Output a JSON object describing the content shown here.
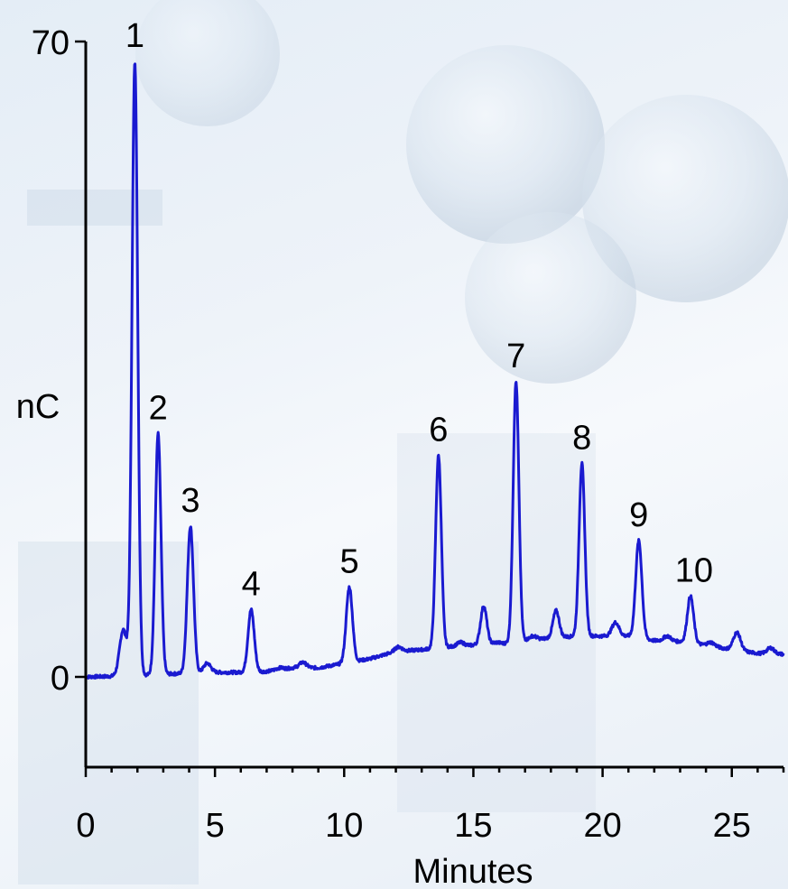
{
  "chart_data": {
    "type": "line",
    "title": "",
    "xlabel": "Minutes",
    "ylabel": "nC",
    "xlim": [
      0,
      27
    ],
    "ylim": [
      0,
      70
    ],
    "x_ticks": [
      0,
      5,
      10,
      15,
      20,
      25
    ],
    "y_ticks": [
      0,
      70
    ],
    "grid": false,
    "colors": {
      "trace": "#1a1ad0",
      "axis": "#000000"
    },
    "baseline": [
      [
        0,
        0
      ],
      [
        1.5,
        0.1
      ],
      [
        3,
        0.3
      ],
      [
        5,
        0.5
      ],
      [
        6,
        0.5
      ],
      [
        7,
        0.6
      ],
      [
        8,
        1.0
      ],
      [
        9,
        1.0
      ],
      [
        10,
        1.5
      ],
      [
        11,
        2.0
      ],
      [
        12,
        2.8
      ],
      [
        13,
        3.0
      ],
      [
        14,
        3.3
      ],
      [
        15,
        3.5
      ],
      [
        16,
        3.6
      ],
      [
        17,
        4.0
      ],
      [
        18,
        4.3
      ],
      [
        19,
        4.5
      ],
      [
        20,
        4.5
      ],
      [
        21,
        4.5
      ],
      [
        22,
        4.0
      ],
      [
        23,
        3.9
      ],
      [
        24,
        3.5
      ],
      [
        25,
        3.0
      ],
      [
        26,
        2.6
      ],
      [
        27,
        2.5
      ]
    ],
    "peaks": [
      {
        "label": "",
        "x": 1.45,
        "y": 5.2
      },
      {
        "label": "1",
        "x": 1.9,
        "y": 67.8
      },
      {
        "label": "2",
        "x": 2.8,
        "y": 26.8
      },
      {
        "label": "3",
        "x": 4.05,
        "y": 16.6
      },
      {
        "label": "",
        "x": 4.7,
        "y": 1.5
      },
      {
        "label": "4",
        "x": 6.4,
        "y": 7.4
      },
      {
        "label": "",
        "x": 7.5,
        "y": 1.0
      },
      {
        "label": "",
        "x": 8.4,
        "y": 1.6
      },
      {
        "label": "5",
        "x": 10.2,
        "y": 9.9
      },
      {
        "label": "",
        "x": 11.0,
        "y": 2.0
      },
      {
        "label": "",
        "x": 12.1,
        "y": 3.3
      },
      {
        "label": "6",
        "x": 13.65,
        "y": 24.4
      },
      {
        "label": "",
        "x": 14.5,
        "y": 3.8
      },
      {
        "label": "",
        "x": 15.4,
        "y": 7.8
      },
      {
        "label": "",
        "x": 15.9,
        "y": 3.8
      },
      {
        "label": "7",
        "x": 16.65,
        "y": 32.5
      },
      {
        "label": "",
        "x": 17.3,
        "y": 4.5
      },
      {
        "label": "",
        "x": 18.2,
        "y": 7.3
      },
      {
        "label": "8",
        "x": 19.2,
        "y": 23.5
      },
      {
        "label": "",
        "x": 20.0,
        "y": 4.5
      },
      {
        "label": "",
        "x": 20.5,
        "y": 6.0
      },
      {
        "label": "9",
        "x": 21.4,
        "y": 15.0
      },
      {
        "label": "",
        "x": 22.5,
        "y": 4.5
      },
      {
        "label": "10",
        "x": 23.4,
        "y": 8.9
      },
      {
        "label": "",
        "x": 24.2,
        "y": 3.8
      },
      {
        "label": "",
        "x": 25.2,
        "y": 4.9
      },
      {
        "label": "",
        "x": 26.5,
        "y": 3.2
      }
    ]
  }
}
